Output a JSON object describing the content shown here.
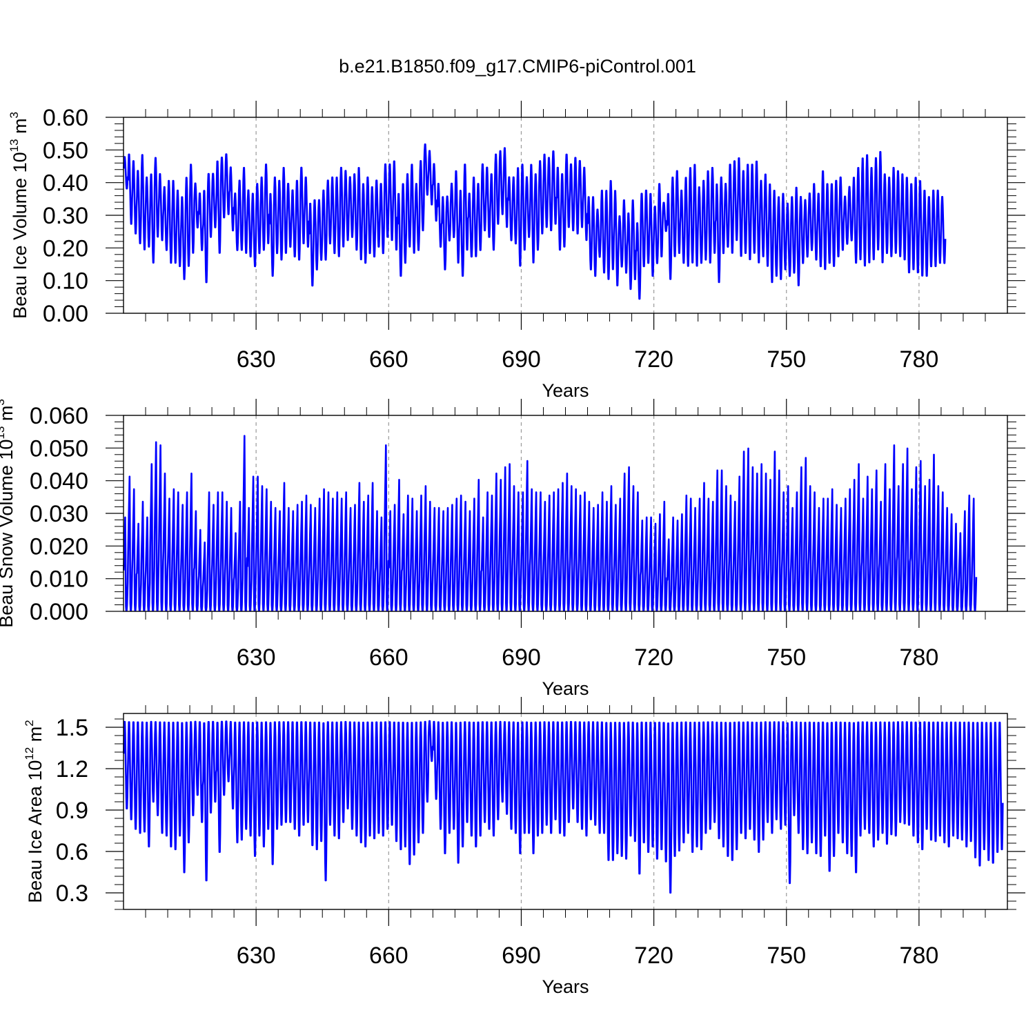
{
  "title": "b.e21.B1850.f09_g17.CMIP6-piControl.001",
  "colors": {
    "series": "#0000ff",
    "axis": "#000000",
    "grid": "#999999"
  },
  "chart_data": [
    {
      "type": "line",
      "ylabel": {
        "main": "Beau Ice Volume 10",
        "exp": "13",
        "tail": " m",
        "unit_exp": "3"
      },
      "xlabel": "Years",
      "xlim": [
        600,
        800
      ],
      "ylim": [
        0.0,
        0.6
      ],
      "x_ticks": [
        630,
        660,
        690,
        720,
        750,
        780
      ],
      "x_tick_labels": [
        "630",
        "660",
        "690",
        "720",
        "750",
        "780"
      ],
      "y_ticks": [
        0.0,
        0.1,
        0.2,
        0.3,
        0.4,
        0.5,
        0.6
      ],
      "y_tick_labels": [
        "0.00",
        "0.10",
        "0.20",
        "0.30",
        "0.40",
        "0.50",
        "0.60"
      ],
      "grid": "vertical dashed at x ticks",
      "series": [
        {
          "sampling": "monthly, one seasonal cycle per year starting at year 600",
          "annual_max": [
            0.48,
            0.49,
            0.47,
            0.44,
            0.49,
            0.42,
            0.43,
            0.48,
            0.43,
            0.39,
            0.41,
            0.41,
            0.38,
            0.36,
            0.42,
            0.46,
            0.4,
            0.37,
            0.38,
            0.43,
            0.43,
            0.47,
            0.48,
            0.49,
            0.45,
            0.37,
            0.41,
            0.45,
            0.38,
            0.37,
            0.4,
            0.42,
            0.46,
            0.37,
            0.42,
            0.41,
            0.45,
            0.4,
            0.38,
            0.41,
            0.45,
            0.42,
            0.34,
            0.35,
            0.35,
            0.38,
            0.41,
            0.42,
            0.42,
            0.45,
            0.44,
            0.42,
            0.43,
            0.45,
            0.4,
            0.42,
            0.39,
            0.41,
            0.4,
            0.46,
            0.46,
            0.47,
            0.37,
            0.4,
            0.43,
            0.46,
            0.4,
            0.47,
            0.52,
            0.5,
            0.46,
            0.4,
            0.36,
            0.36,
            0.4,
            0.44,
            0.38,
            0.46,
            0.37,
            0.42,
            0.4,
            0.46,
            0.45,
            0.43,
            0.49,
            0.5,
            0.51,
            0.42,
            0.42,
            0.45,
            0.46,
            0.42,
            0.46,
            0.43,
            0.47,
            0.49,
            0.48,
            0.5,
            0.45,
            0.43,
            0.49,
            0.46,
            0.48,
            0.47,
            0.45,
            0.36,
            0.36,
            0.32,
            0.38,
            0.38,
            0.41,
            0.38,
            0.3,
            0.35,
            0.31,
            0.35,
            0.28,
            0.37,
            0.38,
            0.37,
            0.33,
            0.4,
            0.34,
            0.37,
            0.42,
            0.44,
            0.38,
            0.42,
            0.45,
            0.46,
            0.39,
            0.41,
            0.44,
            0.45,
            0.4,
            0.42,
            0.4,
            0.46,
            0.47,
            0.48,
            0.44,
            0.46,
            0.46,
            0.47,
            0.41,
            0.43,
            0.4,
            0.38,
            0.36,
            0.37,
            0.34,
            0.36,
            0.39,
            0.36,
            0.35,
            0.37,
            0.4,
            0.37,
            0.44,
            0.4,
            0.4,
            0.41,
            0.42,
            0.36,
            0.39,
            0.42,
            0.45,
            0.48,
            0.49,
            0.45,
            0.48,
            0.5,
            0.43,
            0.42,
            0.45,
            0.44,
            0.43,
            0.42,
            0.4,
            0.42,
            0.41,
            0.38,
            0.36,
            0.38,
            0.38,
            0.36,
            0.35,
            0.37,
            0.34,
            0.36
          ],
          "annual_min": [
            0.38,
            0.27,
            0.24,
            0.21,
            0.19,
            0.2,
            0.15,
            0.23,
            0.22,
            0.19,
            0.15,
            0.15,
            0.14,
            0.1,
            0.14,
            0.18,
            0.26,
            0.19,
            0.09,
            0.23,
            0.26,
            0.18,
            0.29,
            0.3,
            0.25,
            0.19,
            0.19,
            0.18,
            0.17,
            0.14,
            0.18,
            0.19,
            0.21,
            0.11,
            0.18,
            0.16,
            0.18,
            0.2,
            0.17,
            0.16,
            0.21,
            0.2,
            0.08,
            0.13,
            0.16,
            0.16,
            0.21,
            0.18,
            0.17,
            0.2,
            0.22,
            0.23,
            0.19,
            0.16,
            0.15,
            0.18,
            0.17,
            0.2,
            0.18,
            0.23,
            0.22,
            0.19,
            0.11,
            0.15,
            0.2,
            0.18,
            0.19,
            0.25,
            0.36,
            0.33,
            0.28,
            0.2,
            0.13,
            0.22,
            0.23,
            0.15,
            0.11,
            0.19,
            0.17,
            0.17,
            0.19,
            0.25,
            0.23,
            0.19,
            0.27,
            0.3,
            0.26,
            0.22,
            0.21,
            0.14,
            0.19,
            0.23,
            0.15,
            0.19,
            0.24,
            0.26,
            0.25,
            0.27,
            0.19,
            0.2,
            0.26,
            0.25,
            0.24,
            0.26,
            0.22,
            0.13,
            0.11,
            0.17,
            0.12,
            0.1,
            0.13,
            0.08,
            0.14,
            0.12,
            0.07,
            0.1,
            0.04,
            0.14,
            0.15,
            0.11,
            0.15,
            0.17,
            0.25,
            0.1,
            0.17,
            0.18,
            0.15,
            0.14,
            0.15,
            0.14,
            0.15,
            0.16,
            0.15,
            0.18,
            0.09,
            0.18,
            0.2,
            0.18,
            0.22,
            0.17,
            0.18,
            0.16,
            0.18,
            0.15,
            0.17,
            0.14,
            0.09,
            0.11,
            0.1,
            0.13,
            0.11,
            0.12,
            0.08,
            0.15,
            0.17,
            0.19,
            0.16,
            0.14,
            0.13,
            0.15,
            0.14,
            0.17,
            0.19,
            0.21,
            0.22,
            0.15,
            0.16,
            0.14,
            0.15,
            0.16,
            0.19,
            0.15,
            0.18,
            0.17,
            0.18,
            0.17,
            0.16,
            0.12,
            0.13,
            0.12,
            0.11,
            0.11,
            0.14,
            0.14,
            0.15,
            0.15
          ]
        }
      ]
    },
    {
      "type": "line",
      "ylabel": {
        "main": "Beau Snow Volume 10",
        "exp": "13",
        "tail": " m",
        "unit_exp": "3"
      },
      "xlabel": "Years",
      "xlim": [
        600,
        800
      ],
      "ylim": [
        0.0,
        0.06
      ],
      "x_ticks": [
        630,
        660,
        690,
        720,
        750,
        780
      ],
      "x_tick_labels": [
        "630",
        "660",
        "690",
        "720",
        "750",
        "780"
      ],
      "y_ticks": [
        0.0,
        0.01,
        0.02,
        0.03,
        0.04,
        0.05,
        0.06
      ],
      "y_tick_labels": [
        "0.000",
        "0.010",
        "0.020",
        "0.030",
        "0.040",
        "0.050",
        "0.060"
      ],
      "grid": "vertical dashed at x ticks",
      "series": [
        {
          "sampling": "monthly, one seasonal cycle per year starting at year 600",
          "annual_max": [
            0.03,
            0.043,
            0.039,
            0.028,
            0.035,
            0.03,
            0.047,
            0.054,
            0.053,
            0.044,
            0.036,
            0.039,
            0.038,
            0.034,
            0.038,
            0.044,
            0.032,
            0.026,
            0.022,
            0.038,
            0.034,
            0.038,
            0.038,
            0.035,
            0.033,
            0.025,
            0.035,
            0.056,
            0.033,
            0.043,
            0.043,
            0.04,
            0.039,
            0.035,
            0.033,
            0.032,
            0.041,
            0.033,
            0.032,
            0.034,
            0.035,
            0.037,
            0.034,
            0.033,
            0.036,
            0.039,
            0.038,
            0.036,
            0.038,
            0.036,
            0.038,
            0.033,
            0.034,
            0.041,
            0.035,
            0.037,
            0.041,
            0.032,
            0.03,
            0.053,
            0.032,
            0.034,
            0.042,
            0.031,
            0.037,
            0.036,
            0.032,
            0.037,
            0.04,
            0.035,
            0.033,
            0.033,
            0.032,
            0.033,
            0.034,
            0.036,
            0.037,
            0.035,
            0.032,
            0.036,
            0.042,
            0.03,
            0.038,
            0.037,
            0.044,
            0.042,
            0.046,
            0.047,
            0.04,
            0.038,
            0.038,
            0.048,
            0.039,
            0.038,
            0.038,
            0.035,
            0.037,
            0.038,
            0.039,
            0.041,
            0.044,
            0.04,
            0.039,
            0.037,
            0.038,
            0.035,
            0.033,
            0.034,
            0.038,
            0.035,
            0.04,
            0.034,
            0.036,
            0.044,
            0.046,
            0.04,
            0.038,
            0.029,
            0.03,
            0.03,
            0.028,
            0.031,
            0.035,
            0.023,
            0.03,
            0.029,
            0.031,
            0.037,
            0.036,
            0.033,
            0.036,
            0.041,
            0.036,
            0.035,
            0.045,
            0.045,
            0.04,
            0.037,
            0.035,
            0.043,
            0.051,
            0.052,
            0.046,
            0.044,
            0.047,
            0.044,
            0.042,
            0.051,
            0.045,
            0.038,
            0.04,
            0.033,
            0.038,
            0.046,
            0.049,
            0.04,
            0.038,
            0.033,
            0.036,
            0.036,
            0.039,
            0.034,
            0.033,
            0.036,
            0.039,
            0.042,
            0.047,
            0.036,
            0.043,
            0.039,
            0.045,
            0.035,
            0.047,
            0.039,
            0.053,
            0.04,
            0.047,
            0.052,
            0.039,
            0.046,
            0.048,
            0.04,
            0.042,
            0.05,
            0.04,
            0.038,
            0.033,
            0.031,
            0.028,
            0.025,
            0.032,
            0.037,
            0.036
          ]
        }
      ]
    },
    {
      "type": "line",
      "ylabel": {
        "main": "Beau Ice Area 10",
        "exp": "12",
        "tail": " m",
        "unit_exp": "2"
      },
      "xlabel": "Years",
      "xlim": [
        600,
        800
      ],
      "ylim": [
        0.18,
        1.6
      ],
      "x_ticks": [
        630,
        660,
        690,
        720,
        750,
        780
      ],
      "x_tick_labels": [
        "630",
        "660",
        "690",
        "720",
        "750",
        "780"
      ],
      "y_ticks": [
        0.3,
        0.6,
        0.9,
        1.2,
        1.5
      ],
      "y_tick_labels": [
        "0.3",
        "0.6",
        "0.9",
        "1.2",
        "1.5"
      ],
      "grid": "vertical dashed at x ticks",
      "series": [
        {
          "sampling": "monthly, one seasonal cycle per year starting at year 600",
          "annual_max": 1.55,
          "annual_min": [
            0.9,
            0.82,
            0.75,
            0.72,
            0.73,
            0.62,
            0.95,
            0.85,
            0.72,
            0.7,
            0.62,
            0.6,
            0.7,
            0.43,
            0.65,
            0.85,
            1.0,
            0.8,
            0.37,
            0.87,
            0.95,
            0.58,
            1.0,
            1.1,
            0.9,
            0.65,
            0.67,
            0.75,
            0.7,
            0.55,
            0.7,
            0.62,
            0.75,
            0.49,
            0.75,
            0.78,
            0.8,
            0.8,
            0.75,
            0.7,
            0.78,
            0.8,
            0.63,
            0.6,
            0.66,
            0.37,
            0.78,
            0.7,
            0.68,
            0.8,
            0.9,
            0.75,
            0.7,
            0.65,
            0.62,
            0.7,
            0.68,
            0.72,
            0.7,
            0.75,
            0.78,
            0.66,
            0.6,
            0.62,
            0.49,
            0.56,
            0.65,
            0.72,
            0.95,
            1.25,
            0.97,
            0.75,
            0.57,
            0.72,
            0.75,
            0.5,
            0.62,
            0.8,
            0.7,
            0.62,
            0.7,
            0.8,
            0.75,
            0.7,
            0.82,
            0.95,
            0.86,
            0.75,
            0.72,
            0.57,
            0.72,
            0.72,
            0.57,
            0.7,
            0.72,
            0.78,
            0.72,
            0.82,
            0.72,
            0.7,
            0.8,
            0.9,
            0.8,
            0.75,
            0.7,
            0.82,
            0.78,
            0.72,
            0.72,
            0.52,
            0.52,
            0.57,
            0.55,
            0.53,
            0.7,
            0.66,
            0.42,
            0.65,
            0.58,
            0.62,
            0.53,
            0.6,
            0.51,
            0.28,
            0.55,
            0.59,
            0.65,
            0.72,
            0.58,
            0.62,
            0.6,
            0.72,
            0.75,
            0.8,
            0.68,
            0.62,
            0.55,
            0.52,
            0.6,
            0.72,
            0.68,
            0.75,
            0.67,
            0.58,
            0.67,
            0.8,
            0.72,
            0.82,
            0.75,
            0.78,
            0.35,
            0.85,
            0.72,
            0.6,
            0.57,
            0.65,
            0.57,
            0.55,
            0.7,
            0.44,
            0.55,
            0.72,
            0.65,
            0.57,
            0.55,
            0.43,
            0.7,
            0.75,
            0.72,
            0.62,
            0.67,
            0.72,
            0.64,
            0.71,
            0.7,
            0.8,
            0.79,
            0.78,
            0.7,
            0.65,
            0.6,
            0.75,
            0.67,
            0.66,
            0.7,
            0.65,
            0.62,
            0.7,
            0.68,
            0.67,
            0.62,
            0.66,
            0.54,
            0.48,
            0.6,
            0.52,
            0.5,
            0.58,
            0.6
          ]
        }
      ]
    }
  ]
}
